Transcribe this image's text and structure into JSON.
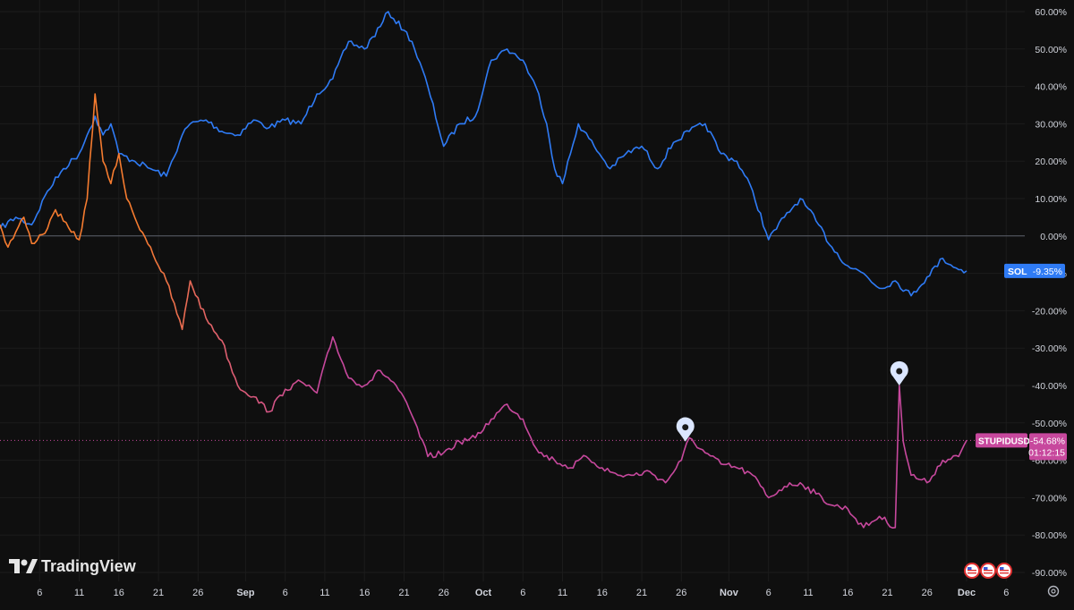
{
  "app": {
    "brand": "TradingView"
  },
  "icons": {
    "logo": "tradingview-logo-icon",
    "settings": "gear-icon",
    "events": [
      "us-flag-event-icon",
      "us-flag-event-icon",
      "us-flag-event-icon"
    ],
    "markers": [
      "map-pin-marker-icon",
      "map-pin-marker-icon"
    ]
  },
  "colors": {
    "background": "#0f0f0f",
    "grid": "#1c1c1c",
    "zero_line": "#5d606b",
    "sol": "#2f7bf5",
    "stupid_early": "#f57b2f",
    "stupid_mid": "#e0616a",
    "stupid_late": "#c7489d",
    "axis_text": "#d1d4dc"
  },
  "price_labels": {
    "sol": {
      "symbol": "SOL",
      "value": "-9.35%",
      "color": "#2f7bf5"
    },
    "stupid": {
      "symbol": "STUPIDUSD",
      "value": "-54.68%",
      "countdown": "01:12:15",
      "color": "#c7489d"
    }
  },
  "chart_data": {
    "type": "line",
    "y_unit": "%",
    "ylim": [
      -92,
      62
    ],
    "grid": true,
    "zero_line": true,
    "y_ticks": [
      "60.00%",
      "50.00%",
      "40.00%",
      "30.00%",
      "20.00%",
      "10.00%",
      "0.00%",
      "-10.00%",
      "-20.00%",
      "-30.00%",
      "-40.00%",
      "-50.00%",
      "-60.00%",
      "-70.00%",
      "-80.00%",
      "-90.00%"
    ],
    "x_ticks": [
      {
        "label": "6",
        "date": "2024-08-06"
      },
      {
        "label": "11",
        "date": "2024-08-11"
      },
      {
        "label": "16",
        "date": "2024-08-16"
      },
      {
        "label": "21",
        "date": "2024-08-21"
      },
      {
        "label": "26",
        "date": "2024-08-26"
      },
      {
        "label": "Sep",
        "date": "2024-09-01",
        "bold": true
      },
      {
        "label": "6",
        "date": "2024-09-06"
      },
      {
        "label": "11",
        "date": "2024-09-11"
      },
      {
        "label": "16",
        "date": "2024-09-16"
      },
      {
        "label": "21",
        "date": "2024-09-21"
      },
      {
        "label": "26",
        "date": "2024-09-26"
      },
      {
        "label": "Oct",
        "date": "2024-10-01",
        "bold": true
      },
      {
        "label": "6",
        "date": "2024-10-06"
      },
      {
        "label": "11",
        "date": "2024-10-11"
      },
      {
        "label": "16",
        "date": "2024-10-16"
      },
      {
        "label": "21",
        "date": "2024-10-21"
      },
      {
        "label": "26",
        "date": "2024-10-26"
      },
      {
        "label": "Nov",
        "date": "2024-11-01",
        "bold": true
      },
      {
        "label": "6",
        "date": "2024-11-06"
      },
      {
        "label": "11",
        "date": "2024-11-11"
      },
      {
        "label": "16",
        "date": "2024-11-16"
      },
      {
        "label": "21",
        "date": "2024-11-21"
      },
      {
        "label": "26",
        "date": "2024-11-26"
      },
      {
        "label": "Dec",
        "date": "2024-12-01",
        "bold": true
      },
      {
        "label": "6",
        "date": "2024-12-06"
      }
    ],
    "x_range": [
      "2024-08-01",
      "2024-12-08"
    ],
    "series": [
      {
        "name": "SOL",
        "color": "#2f7bf5",
        "points": [
          [
            "2024-08-01",
            2
          ],
          [
            "2024-08-03",
            5
          ],
          [
            "2024-08-05",
            3
          ],
          [
            "2024-08-07",
            12
          ],
          [
            "2024-08-09",
            18
          ],
          [
            "2024-08-11",
            22
          ],
          [
            "2024-08-12",
            27
          ],
          [
            "2024-08-13",
            32
          ],
          [
            "2024-08-14",
            27
          ],
          [
            "2024-08-15",
            30
          ],
          [
            "2024-08-16",
            22
          ],
          [
            "2024-08-18",
            20
          ],
          [
            "2024-08-20",
            18
          ],
          [
            "2024-08-22",
            16
          ],
          [
            "2024-08-24",
            27
          ],
          [
            "2024-08-25",
            30
          ],
          [
            "2024-08-27",
            31
          ],
          [
            "2024-08-29",
            28
          ],
          [
            "2024-08-31",
            27
          ],
          [
            "2024-09-02",
            31
          ],
          [
            "2024-09-04",
            29
          ],
          [
            "2024-09-06",
            31
          ],
          [
            "2024-09-08",
            30
          ],
          [
            "2024-09-10",
            38
          ],
          [
            "2024-09-12",
            42
          ],
          [
            "2024-09-14",
            52
          ],
          [
            "2024-09-16",
            50
          ],
          [
            "2024-09-18",
            56
          ],
          [
            "2024-09-19",
            60
          ],
          [
            "2024-09-21",
            55
          ],
          [
            "2024-09-22",
            52
          ],
          [
            "2024-09-24",
            40
          ],
          [
            "2024-09-26",
            24
          ],
          [
            "2024-09-28",
            30
          ],
          [
            "2024-09-30",
            32
          ],
          [
            "2024-10-02",
            47
          ],
          [
            "2024-10-04",
            50
          ],
          [
            "2024-10-06",
            47
          ],
          [
            "2024-10-08",
            38
          ],
          [
            "2024-10-09",
            30
          ],
          [
            "2024-10-10",
            18
          ],
          [
            "2024-10-11",
            14
          ],
          [
            "2024-10-13",
            30
          ],
          [
            "2024-10-15",
            24
          ],
          [
            "2024-10-17",
            18
          ],
          [
            "2024-10-19",
            22
          ],
          [
            "2024-10-21",
            24
          ],
          [
            "2024-10-23",
            18
          ],
          [
            "2024-10-25",
            25
          ],
          [
            "2024-10-27",
            28
          ],
          [
            "2024-10-29",
            30
          ],
          [
            "2024-10-31",
            22
          ],
          [
            "2024-11-02",
            20
          ],
          [
            "2024-11-04",
            12
          ],
          [
            "2024-11-06",
            -1
          ],
          [
            "2024-11-08",
            5
          ],
          [
            "2024-11-10",
            10
          ],
          [
            "2024-11-12",
            4
          ],
          [
            "2024-11-14",
            -3
          ],
          [
            "2024-11-16",
            -8
          ],
          [
            "2024-11-18",
            -10
          ],
          [
            "2024-11-20",
            -14
          ],
          [
            "2024-11-22",
            -12
          ],
          [
            "2024-11-24",
            -16
          ],
          [
            "2024-11-26",
            -11
          ],
          [
            "2024-11-28",
            -6
          ],
          [
            "2024-11-30",
            -9
          ],
          [
            "2024-12-01",
            -9.35
          ]
        ]
      },
      {
        "name": "STUPIDUSD",
        "color": "#c7489d",
        "points": [
          [
            "2024-08-01",
            3
          ],
          [
            "2024-08-02",
            -3
          ],
          [
            "2024-08-04",
            5
          ],
          [
            "2024-08-05",
            -2
          ],
          [
            "2024-08-07",
            2
          ],
          [
            "2024-08-08",
            7
          ],
          [
            "2024-08-09",
            4
          ],
          [
            "2024-08-10",
            1
          ],
          [
            "2024-08-11",
            -1
          ],
          [
            "2024-08-12",
            10
          ],
          [
            "2024-08-13",
            38
          ],
          [
            "2024-08-14",
            20
          ],
          [
            "2024-08-15",
            14
          ],
          [
            "2024-08-16",
            22
          ],
          [
            "2024-08-17",
            10
          ],
          [
            "2024-08-18",
            5
          ],
          [
            "2024-08-20",
            -3
          ],
          [
            "2024-08-21",
            -8
          ],
          [
            "2024-08-22",
            -12
          ],
          [
            "2024-08-24",
            -25
          ],
          [
            "2024-08-25",
            -12
          ],
          [
            "2024-08-27",
            -22
          ],
          [
            "2024-08-29",
            -28
          ],
          [
            "2024-08-31",
            -40
          ],
          [
            "2024-09-02",
            -43
          ],
          [
            "2024-09-04",
            -47
          ],
          [
            "2024-09-06",
            -41
          ],
          [
            "2024-09-08",
            -39
          ],
          [
            "2024-09-10",
            -42
          ],
          [
            "2024-09-12",
            -27
          ],
          [
            "2024-09-14",
            -38
          ],
          [
            "2024-09-16",
            -40
          ],
          [
            "2024-09-18",
            -36
          ],
          [
            "2024-09-20",
            -40
          ],
          [
            "2024-09-22",
            -48
          ],
          [
            "2024-09-24",
            -59
          ],
          [
            "2024-09-26",
            -58
          ],
          [
            "2024-09-28",
            -55
          ],
          [
            "2024-09-30",
            -54
          ],
          [
            "2024-10-02",
            -49
          ],
          [
            "2024-10-04",
            -45
          ],
          [
            "2024-10-06",
            -49
          ],
          [
            "2024-10-08",
            -58
          ],
          [
            "2024-10-10",
            -60
          ],
          [
            "2024-10-12",
            -62
          ],
          [
            "2024-10-14",
            -59
          ],
          [
            "2024-10-16",
            -62
          ],
          [
            "2024-10-18",
            -64
          ],
          [
            "2024-10-20",
            -64
          ],
          [
            "2024-10-22",
            -63
          ],
          [
            "2024-10-24",
            -66
          ],
          [
            "2024-10-26",
            -60
          ],
          [
            "2024-10-27",
            -54
          ],
          [
            "2024-10-29",
            -58
          ],
          [
            "2024-10-31",
            -61
          ],
          [
            "2024-11-02",
            -62
          ],
          [
            "2024-11-04",
            -64
          ],
          [
            "2024-11-06",
            -70
          ],
          [
            "2024-11-08",
            -67
          ],
          [
            "2024-11-10",
            -66
          ],
          [
            "2024-11-12",
            -69
          ],
          [
            "2024-11-14",
            -72
          ],
          [
            "2024-11-16",
            -73
          ],
          [
            "2024-11-18",
            -78
          ],
          [
            "2024-11-20",
            -75
          ],
          [
            "2024-11-22",
            -78
          ],
          [
            "2024-11-22T12:00",
            -40
          ],
          [
            "2024-11-23",
            -55
          ],
          [
            "2024-11-24",
            -64
          ],
          [
            "2024-11-26",
            -66
          ],
          [
            "2024-11-28",
            -60
          ],
          [
            "2024-11-30",
            -59
          ],
          [
            "2024-12-01",
            -54.68
          ]
        ]
      }
    ]
  }
}
